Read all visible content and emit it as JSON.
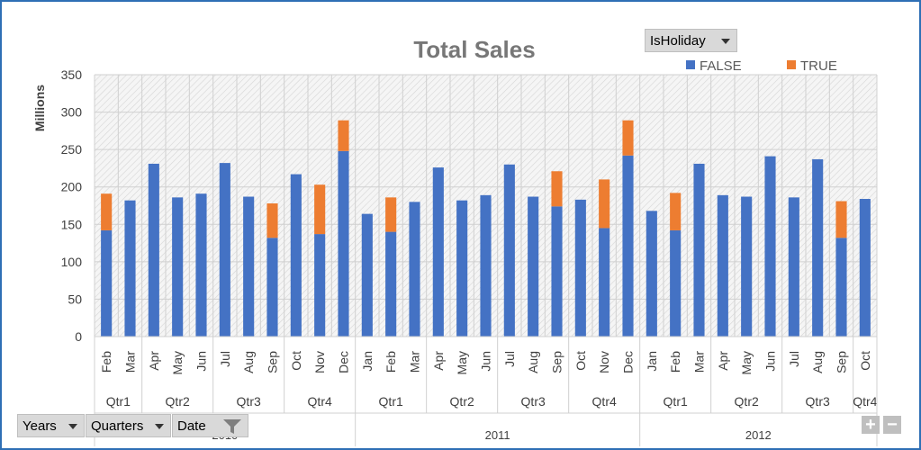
{
  "chart_data": {
    "type": "bar",
    "stacked": true,
    "title": "Total Sales",
    "ylabel": "Millions",
    "ylim": [
      0,
      350
    ],
    "yticks": [
      0,
      50,
      100,
      150,
      200,
      250,
      300,
      350
    ],
    "legend_title": "IsHoliday",
    "legend_placement": "top-right",
    "categories": [
      "Feb",
      "Mar",
      "Apr",
      "May",
      "Jun",
      "Jul",
      "Aug",
      "Sep",
      "Oct",
      "Nov",
      "Dec",
      "Jan",
      "Feb",
      "Mar",
      "Apr",
      "May",
      "Jun",
      "Jul",
      "Aug",
      "Sep",
      "Oct",
      "Nov",
      "Dec",
      "Jan",
      "Feb",
      "Mar",
      "Apr",
      "May",
      "Jun",
      "Jul",
      "Aug",
      "Sep",
      "Oct"
    ],
    "quarters": [
      {
        "label": "Qtr1",
        "count": 2
      },
      {
        "label": "Qtr2",
        "count": 3
      },
      {
        "label": "Qtr3",
        "count": 3
      },
      {
        "label": "Qtr4",
        "count": 3
      },
      {
        "label": "Qtr1",
        "count": 3
      },
      {
        "label": "Qtr2",
        "count": 3
      },
      {
        "label": "Qtr3",
        "count": 3
      },
      {
        "label": "Qtr4",
        "count": 3
      },
      {
        "label": "Qtr1",
        "count": 3
      },
      {
        "label": "Qtr2",
        "count": 3
      },
      {
        "label": "Qtr3",
        "count": 3
      },
      {
        "label": "Qtr4",
        "count": 1
      }
    ],
    "years": [
      {
        "label": "2010",
        "count": 11
      },
      {
        "label": "2011",
        "count": 12
      },
      {
        "label": "2012",
        "count": 10
      }
    ],
    "series": [
      {
        "name": "FALSE",
        "color": "#4472c4",
        "values": [
          142,
          182,
          231,
          186,
          191,
          232,
          187,
          132,
          217,
          137,
          248,
          164,
          140,
          180,
          226,
          182,
          189,
          230,
          187,
          174,
          183,
          145,
          242,
          168,
          142,
          231,
          189,
          187,
          241,
          186,
          237,
          132,
          184
        ]
      },
      {
        "name": "TRUE",
        "color": "#ed7d31",
        "values": [
          49,
          0,
          0,
          0,
          0,
          0,
          0,
          46,
          0,
          66,
          41,
          0,
          46,
          0,
          0,
          0,
          0,
          0,
          0,
          47,
          0,
          65,
          47,
          0,
          50,
          0,
          0,
          0,
          0,
          0,
          0,
          49,
          0
        ]
      }
    ],
    "grid": true
  },
  "filters": {
    "legend_field": "IsHoliday",
    "row_fields": [
      {
        "name": "years",
        "label": "Years"
      },
      {
        "name": "quarters",
        "label": "Quarters"
      },
      {
        "name": "date",
        "label": "Date"
      }
    ],
    "zoom_in": "+",
    "zoom_out": "−"
  }
}
